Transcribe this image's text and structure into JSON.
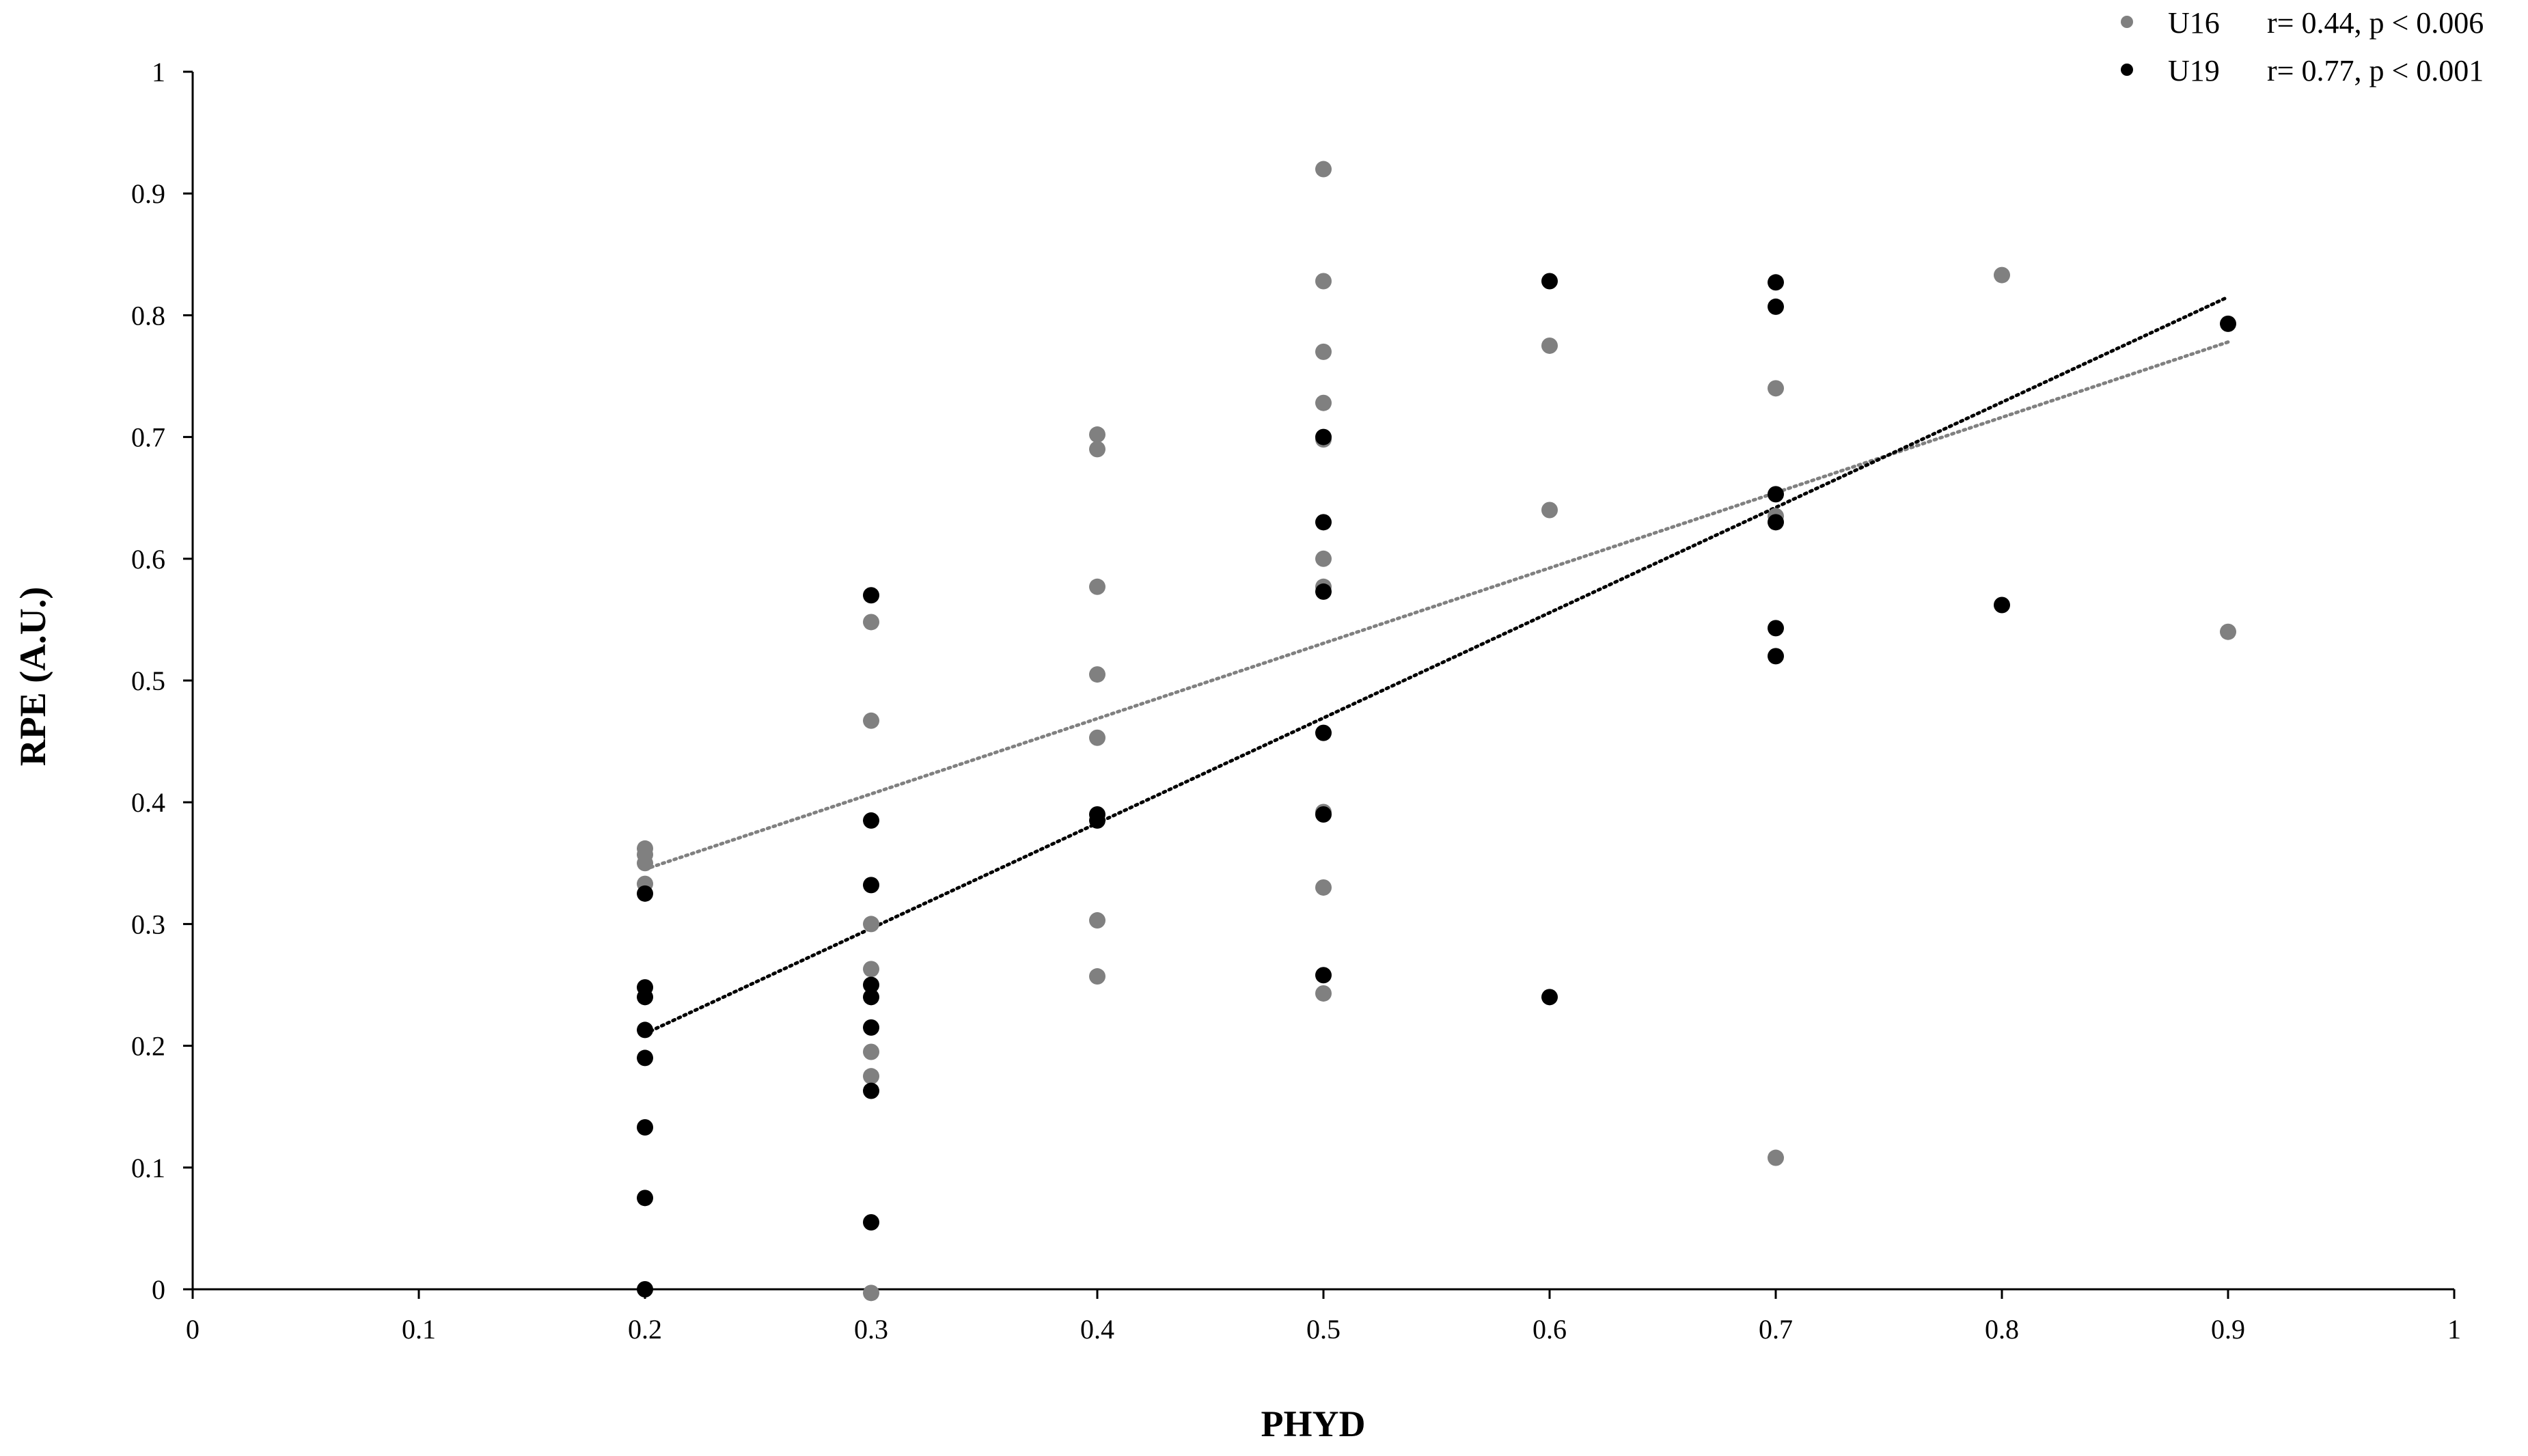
{
  "chart_data": {
    "type": "scatter",
    "xlabel": "PHYD",
    "ylabel": "RPE (A.U.)",
    "xlim": [
      0,
      1
    ],
    "ylim": [
      0,
      1
    ],
    "x_ticks": [
      "0",
      "0.1",
      "0.2",
      "0.3",
      "0.4",
      "0.5",
      "0.6",
      "0.7",
      "0.8",
      "0.9",
      "1"
    ],
    "y_ticks": [
      "0",
      "0.1",
      "0.2",
      "0.3",
      "0.4",
      "0.5",
      "0.6",
      "0.7",
      "0.8",
      "0.9",
      "1"
    ],
    "grid": false,
    "legend_position": "top-right",
    "series": [
      {
        "name": "U16",
        "annotation": "r= 0.44, p < 0.006",
        "color": "#808080",
        "trendline": {
          "x": [
            0.2,
            0.9
          ],
          "y": [
            0.345,
            0.778
          ],
          "style": "dotted"
        },
        "points": [
          {
            "x": 0.2,
            "y": 0.362
          },
          {
            "x": 0.2,
            "y": 0.357
          },
          {
            "x": 0.2,
            "y": 0.35
          },
          {
            "x": 0.2,
            "y": 0.333
          },
          {
            "x": 0.3,
            "y": 0.548
          },
          {
            "x": 0.3,
            "y": 0.467
          },
          {
            "x": 0.3,
            "y": 0.3
          },
          {
            "x": 0.3,
            "y": 0.263
          },
          {
            "x": 0.3,
            "y": 0.195
          },
          {
            "x": 0.3,
            "y": 0.175
          },
          {
            "x": 0.3,
            "y": -0.003
          },
          {
            "x": 0.4,
            "y": 0.702
          },
          {
            "x": 0.4,
            "y": 0.69
          },
          {
            "x": 0.4,
            "y": 0.577
          },
          {
            "x": 0.4,
            "y": 0.505
          },
          {
            "x": 0.4,
            "y": 0.453
          },
          {
            "x": 0.4,
            "y": 0.303
          },
          {
            "x": 0.4,
            "y": 0.257
          },
          {
            "x": 0.5,
            "y": 0.92
          },
          {
            "x": 0.5,
            "y": 0.828
          },
          {
            "x": 0.5,
            "y": 0.77
          },
          {
            "x": 0.5,
            "y": 0.728
          },
          {
            "x": 0.5,
            "y": 0.698
          },
          {
            "x": 0.5,
            "y": 0.6
          },
          {
            "x": 0.5,
            "y": 0.577
          },
          {
            "x": 0.5,
            "y": 0.392
          },
          {
            "x": 0.5,
            "y": 0.33
          },
          {
            "x": 0.5,
            "y": 0.243
          },
          {
            "x": 0.6,
            "y": 0.775
          },
          {
            "x": 0.6,
            "y": 0.64
          },
          {
            "x": 0.7,
            "y": 0.74
          },
          {
            "x": 0.7,
            "y": 0.635
          },
          {
            "x": 0.7,
            "y": 0.108
          },
          {
            "x": 0.8,
            "y": 0.833
          },
          {
            "x": 0.9,
            "y": 0.54
          }
        ]
      },
      {
        "name": "U19",
        "annotation": "r= 0.77, p < 0.001",
        "color": "#000000",
        "trendline": {
          "x": [
            0.2,
            0.9
          ],
          "y": [
            0.21,
            0.815
          ],
          "style": "dotted"
        },
        "points": [
          {
            "x": 0.2,
            "y": 0.325
          },
          {
            "x": 0.2,
            "y": 0.248
          },
          {
            "x": 0.2,
            "y": 0.24
          },
          {
            "x": 0.2,
            "y": 0.213
          },
          {
            "x": 0.2,
            "y": 0.19
          },
          {
            "x": 0.2,
            "y": 0.133
          },
          {
            "x": 0.2,
            "y": 0.075
          },
          {
            "x": 0.2,
            "y": 0.0
          },
          {
            "x": 0.3,
            "y": 0.57
          },
          {
            "x": 0.3,
            "y": 0.385
          },
          {
            "x": 0.3,
            "y": 0.332
          },
          {
            "x": 0.3,
            "y": 0.25
          },
          {
            "x": 0.3,
            "y": 0.24
          },
          {
            "x": 0.3,
            "y": 0.215
          },
          {
            "x": 0.3,
            "y": 0.163
          },
          {
            "x": 0.3,
            "y": 0.055
          },
          {
            "x": 0.4,
            "y": 0.39
          },
          {
            "x": 0.4,
            "y": 0.385
          },
          {
            "x": 0.5,
            "y": 0.7
          },
          {
            "x": 0.5,
            "y": 0.63
          },
          {
            "x": 0.5,
            "y": 0.573
          },
          {
            "x": 0.5,
            "y": 0.457
          },
          {
            "x": 0.5,
            "y": 0.39
          },
          {
            "x": 0.5,
            "y": 0.258
          },
          {
            "x": 0.6,
            "y": 0.828
          },
          {
            "x": 0.6,
            "y": 0.24
          },
          {
            "x": 0.7,
            "y": 0.827
          },
          {
            "x": 0.7,
            "y": 0.807
          },
          {
            "x": 0.7,
            "y": 0.653
          },
          {
            "x": 0.7,
            "y": 0.63
          },
          {
            "x": 0.7,
            "y": 0.543
          },
          {
            "x": 0.7,
            "y": 0.52
          },
          {
            "x": 0.8,
            "y": 0.562
          },
          {
            "x": 0.9,
            "y": 0.793
          }
        ]
      }
    ]
  }
}
